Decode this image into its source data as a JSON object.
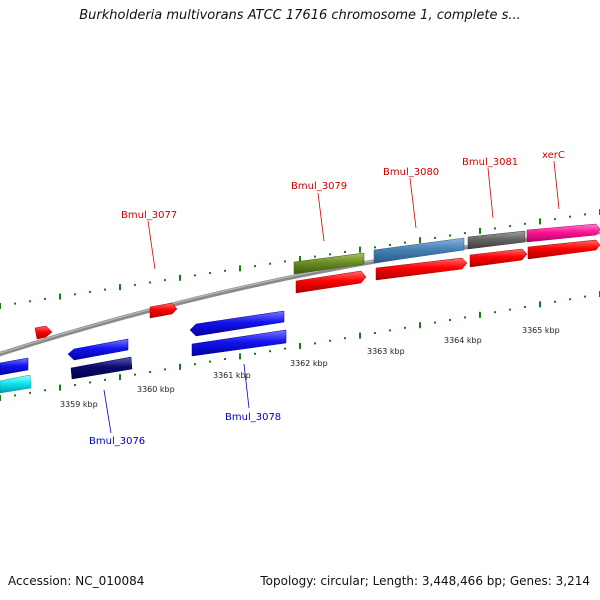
{
  "title": "Burkholderia multivorans ATCC 17616 chromosome 1, complete s...",
  "accession": "Accession: NC_010084",
  "summary": "Topology: circular; Length: 3,448,466 bp; Genes: 3,214",
  "scale_labels": [
    "3359 kbp",
    "3360 kbp",
    "3361 kbp",
    "3362 kbp",
    "3363 kbp",
    "3364 kbp",
    "3365 kbp"
  ],
  "gene_labels": [
    {
      "text": "Bmul_3077",
      "strand": "forward"
    },
    {
      "text": "Bmul_3079",
      "strand": "forward"
    },
    {
      "text": "Bmul_3080",
      "strand": "forward"
    },
    {
      "text": "Bmul_3081",
      "strand": "forward"
    },
    {
      "text": "xerC",
      "strand": "forward"
    },
    {
      "text": "Bmul_3076",
      "strand": "reverse"
    },
    {
      "text": "Bmul_3078",
      "strand": "reverse"
    }
  ],
  "colors": {
    "forward_label": "#cc0000",
    "reverse_label": "#0000cc",
    "backbone": "#8a8a8a",
    "tick": "#1a7a1a",
    "cds_forward": "#ff0000",
    "cds_reverse": "#1a1aee"
  }
}
